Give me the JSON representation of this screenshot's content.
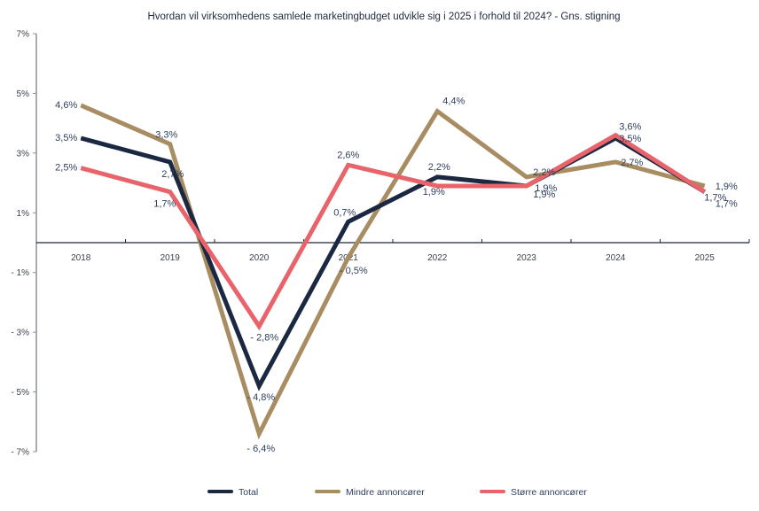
{
  "chart_data": {
    "type": "line",
    "title": "Hvordan vil virksomhedens samlede marketingbudget udvikle sig i 2025 i forhold til 2024? - Gns. stigning",
    "xlabel": "",
    "ylabel": "",
    "categories": [
      "2018",
      "2019",
      "2020",
      "2021",
      "2022",
      "2023",
      "2024",
      "2025"
    ],
    "ylim": [
      -7,
      7
    ],
    "yticks": [
      7,
      5,
      3,
      1,
      -1,
      -3,
      -5,
      -7
    ],
    "ytick_labels": [
      "7%",
      "5%",
      "3%",
      "1%",
      "- 1%",
      "- 3%",
      "- 5%",
      "- 7%"
    ],
    "grid": false,
    "legend_position": "bottom",
    "series": [
      {
        "name": "Total",
        "color": "#1b2842",
        "values": [
          3.5,
          2.7,
          -4.8,
          0.7,
          2.2,
          1.9,
          3.5,
          1.7
        ],
        "labels": [
          "3,5%",
          "2,7%",
          "- 4,8%",
          "0,7%",
          "2,2%",
          "1,9%",
          "3,5%",
          "1,7%"
        ]
      },
      {
        "name": "Mindre annoncører",
        "color": "#a88c62",
        "values": [
          4.6,
          3.3,
          -6.4,
          -0.5,
          4.4,
          2.2,
          2.7,
          1.9
        ],
        "labels": [
          "4,6%",
          "3,3%",
          "- 6,4%",
          "- 0,5%",
          "4,4%",
          "2,2%",
          "2,7%",
          "1,9%"
        ]
      },
      {
        "name": "Større annoncører",
        "color": "#e8646a",
        "values": [
          2.5,
          1.7,
          -2.8,
          2.6,
          1.9,
          1.9,
          3.6,
          1.7
        ],
        "labels": [
          "2,5%",
          "1,7%",
          "- 2,8%",
          "2,6%",
          "1,9%",
          "1,9%",
          "3,6%",
          "1,7%"
        ]
      }
    ]
  }
}
